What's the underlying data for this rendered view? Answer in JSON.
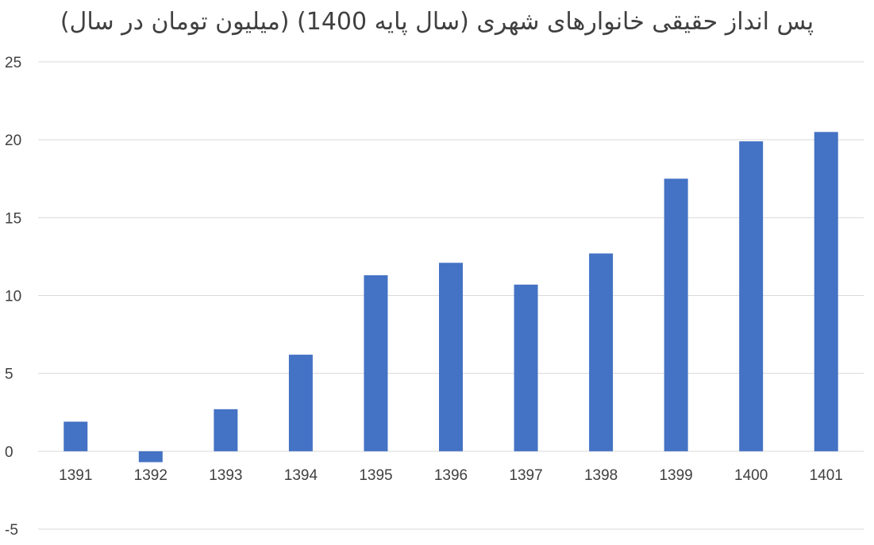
{
  "chart_data": {
    "type": "bar",
    "title": "پس انداز حقیقی خانوارهای شهری (سال پایه 1400) (میلیون تومان در سال)",
    "xlabel": "",
    "ylabel": "",
    "categories": [
      "1391",
      "1392",
      "1393",
      "1394",
      "1395",
      "1396",
      "1397",
      "1398",
      "1399",
      "1400",
      "1401"
    ],
    "series": [
      {
        "values": [
          1.9,
          -0.7,
          2.7,
          6.2,
          11.3,
          12.1,
          10.7,
          12.7,
          17.5,
          19.9,
          20.5
        ]
      }
    ],
    "ylim": [
      -5,
      25
    ],
    "yticks": [
      "-5",
      "0",
      "5",
      "10",
      "15",
      "20",
      "25"
    ],
    "ytick_values": [
      -5,
      0,
      5,
      10,
      15,
      20,
      25
    ],
    "grid": true,
    "legend": "none",
    "bar_color": "#4472C4",
    "grid_color": "#D9D9D9"
  }
}
